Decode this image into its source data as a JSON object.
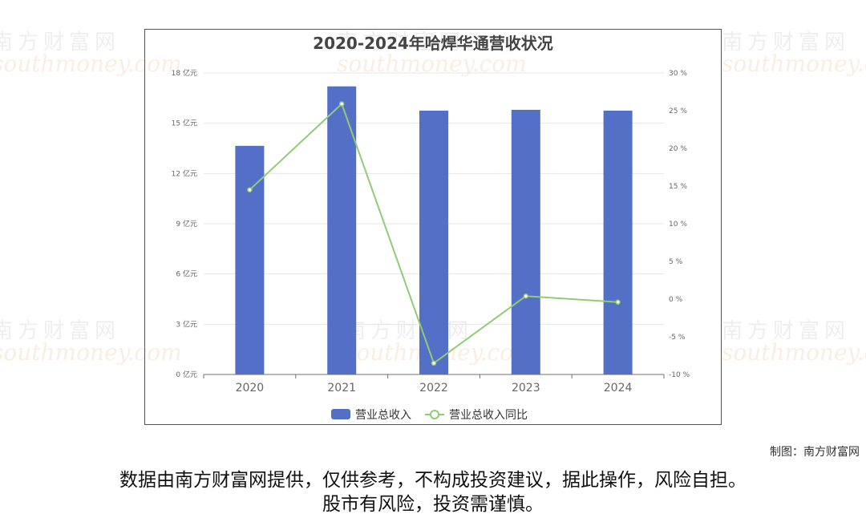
{
  "watermark": {
    "cn": "南方财富网",
    "en": "southmoney.com"
  },
  "chart_data": {
    "type": "bar",
    "title": "2020-2024年哈焊华通营收状况",
    "categories": [
      "2020",
      "2021",
      "2022",
      "2023",
      "2024"
    ],
    "series": [
      {
        "name": "营业总收入",
        "type": "bar",
        "axis": "left",
        "color": "#5470c6",
        "values": [
          13.65,
          17.2,
          15.75,
          15.8,
          15.75
        ]
      },
      {
        "name": "营业总收入同比",
        "type": "line",
        "axis": "right",
        "color": "#91cc75",
        "values": [
          14.5,
          25.9,
          -8.5,
          0.4,
          -0.4
        ]
      }
    ],
    "y_left": {
      "ylim": [
        0,
        18
      ],
      "ticks": [
        0,
        3,
        6,
        9,
        12,
        15,
        18
      ],
      "tick_labels": [
        "0 亿元",
        "3 亿元",
        "6 亿元",
        "9 亿元",
        "12 亿元",
        "15 亿元",
        "18 亿元"
      ]
    },
    "y_right": {
      "ylim": [
        -10,
        30
      ],
      "ticks": [
        -10,
        -5,
        0,
        5,
        10,
        15,
        20,
        25,
        30
      ],
      "tick_labels": [
        "-10 %",
        "-5 %",
        "0 %",
        "5 %",
        "10 %",
        "15 %",
        "20 %",
        "25 %",
        "30 %"
      ]
    },
    "grid": true,
    "legend_position": "bottom-center"
  },
  "credit": "制图：南方财富网",
  "disclaimer": {
    "line1": "数据由南方财富网提供，仅供参考，不构成投资建议，据此操作，风险自担。",
    "line2": "股市有风险，投资需谨慎。"
  }
}
